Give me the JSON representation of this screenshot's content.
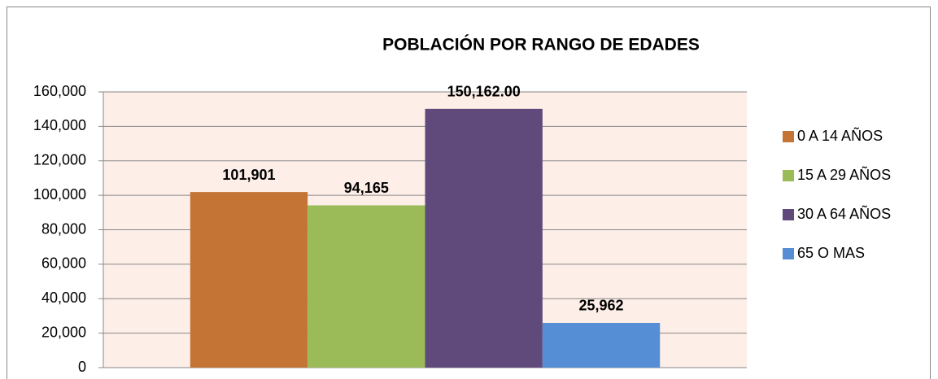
{
  "chart_data": {
    "type": "bar",
    "title": "POBLACIÓN POR RANGO DE EDADES",
    "categories": [
      null
    ],
    "series": [
      {
        "name": "0 A 14 AÑOS",
        "color": "#c47536",
        "values": [
          101901
        ],
        "value_labels": [
          "101,901"
        ]
      },
      {
        "name": "15 A 29 AÑOS",
        "color": "#9bbb59",
        "values": [
          94165
        ],
        "value_labels": [
          "94,165"
        ]
      },
      {
        "name": "30 A 64 AÑOS",
        "color": "#604a7b",
        "values": [
          150162
        ],
        "value_labels": [
          "150,162.00"
        ]
      },
      {
        "name": "65 O MAS",
        "color": "#558ed5",
        "values": [
          25962
        ],
        "value_labels": [
          "25,962"
        ]
      }
    ],
    "ylim": [
      0,
      160000
    ],
    "yticks": [
      0,
      {
        "value": 20000,
        "label": "20,000"
      },
      {
        "value": 40000,
        "label": "40,000"
      },
      {
        "value": 60000,
        "label": "60,000"
      },
      {
        "value": 80000,
        "label": "80,000"
      },
      {
        "value": 100000,
        "label": "100,000"
      },
      {
        "value": 120000,
        "label": "120,000"
      },
      {
        "value": 140000,
        "label": "140,000"
      },
      {
        "value": 160000,
        "label": "160,000"
      }
    ],
    "grid": true,
    "legend": "right"
  }
}
